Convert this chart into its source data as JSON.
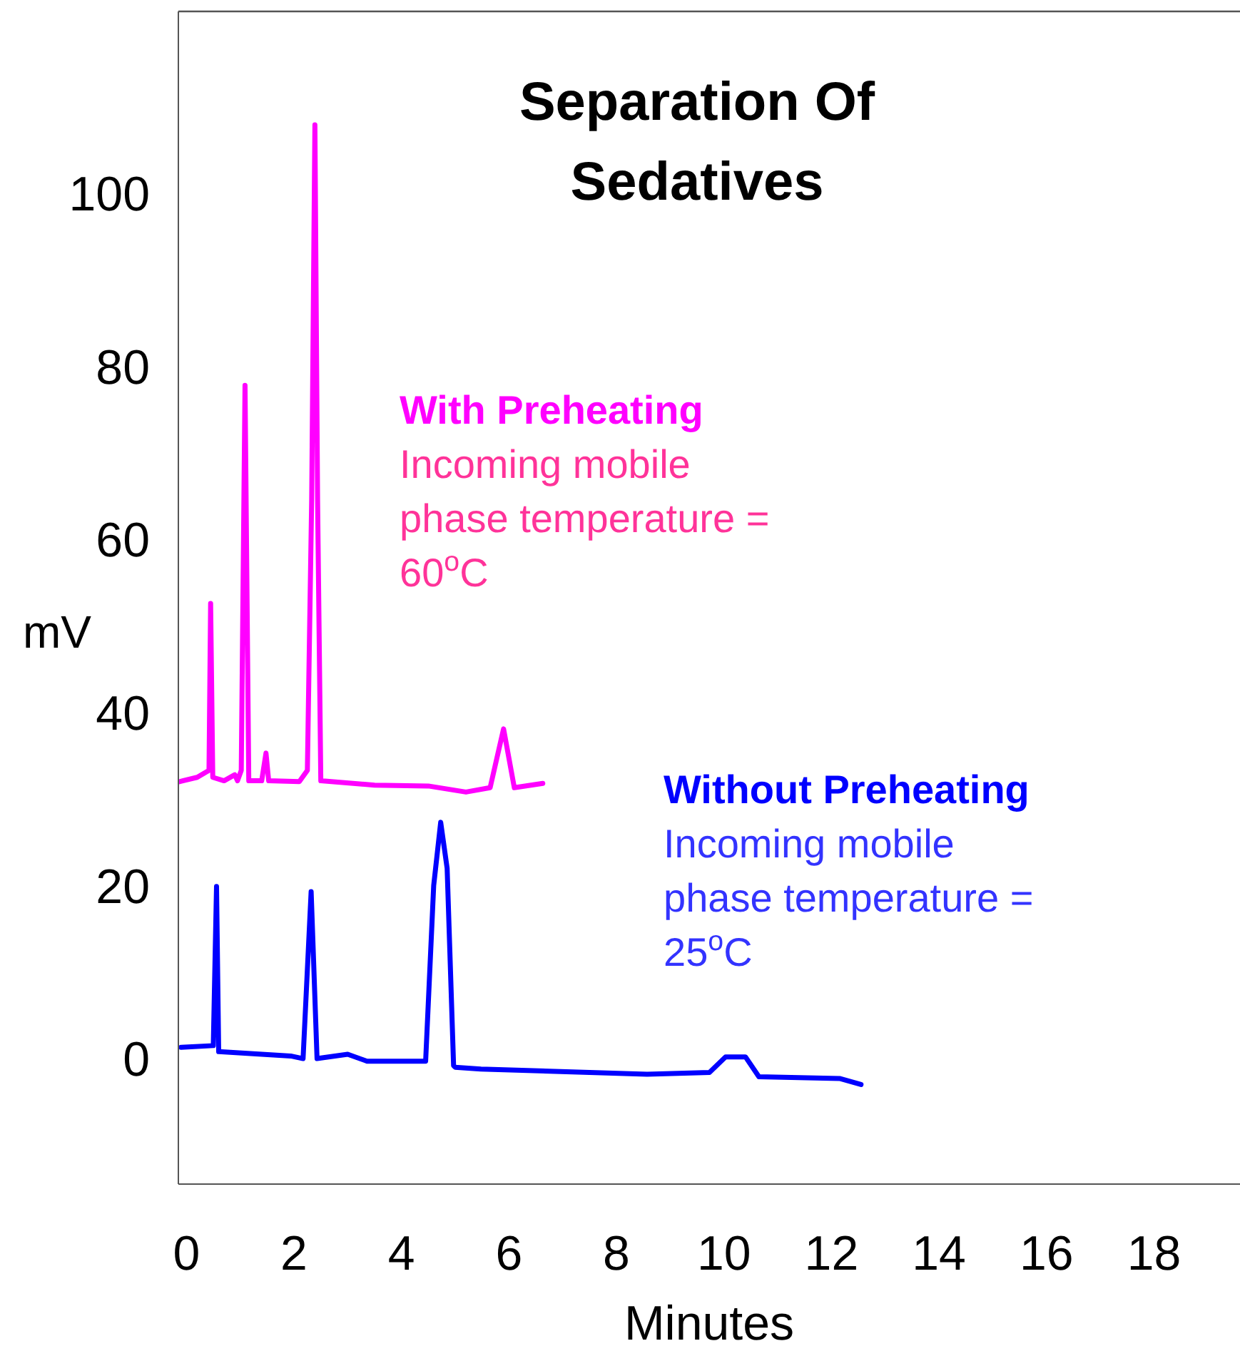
{
  "chart_data": {
    "type": "line",
    "title": "Separation Of Sedatives",
    "xlabel": "Minutes",
    "ylabel": "mV",
    "xlim": [
      -0.15,
      19.6
    ],
    "ylim": [
      -14.5,
      121
    ],
    "xticks": [
      0,
      2,
      4,
      6,
      8,
      10,
      12,
      14,
      16,
      18
    ],
    "yticks": [
      0,
      20,
      40,
      60,
      80,
      100
    ],
    "marker": "none",
    "line_style": "solid",
    "annotations": [
      "Incoming mobile phase temperature = 60$^{o}$C",
      "Incoming mobile phase temperature = 25$^{o}$C"
    ],
    "series": [
      {
        "name": "With Preheating",
        "color": "#ff00ff",
        "x": [
          -0.13,
          0.2,
          0.42,
          0.45,
          0.49,
          0.7,
          0.9,
          0.95,
          1.02,
          1.09,
          1.16,
          1.4,
          1.48,
          1.53,
          2.1,
          2.25,
          2.33,
          2.39,
          2.44,
          2.5,
          3.5,
          4.5,
          5.2,
          5.65,
          5.9,
          6.1,
          6.63
        ],
        "values": [
          32,
          32.5,
          33.3,
          52.6,
          32.5,
          32.1,
          32.8,
          32.1,
          33.3,
          77.8,
          32.1,
          32.1,
          35.3,
          32.1,
          32,
          33.3,
          64.6,
          107.9,
          64.6,
          32.1,
          31.6,
          31.5,
          30.8,
          31.3,
          38.1,
          31.3,
          31.8
        ]
      },
      {
        "name": "Without Preheating",
        "color": "#0000ff",
        "x": [
          -0.1,
          0.5,
          0.56,
          0.6,
          1.94,
          2.17,
          2.32,
          2.43,
          3.0,
          3.36,
          4.45,
          4.6,
          4.73,
          4.85,
          4.97,
          5.0,
          5.48,
          8.57,
          9.73,
          10.03,
          10.12,
          10.4,
          10.65,
          12.15,
          12.55
        ],
        "values": [
          1.3,
          1.5,
          19.9,
          0.8,
          0.3,
          0,
          19.3,
          0,
          0.5,
          -0.3,
          -0.3,
          20,
          27.3,
          22,
          -0.8,
          -1,
          -1.2,
          -1.8,
          -1.6,
          0.2,
          0.2,
          0.2,
          -2.1,
          -2.3,
          -3
        ]
      }
    ]
  }
}
